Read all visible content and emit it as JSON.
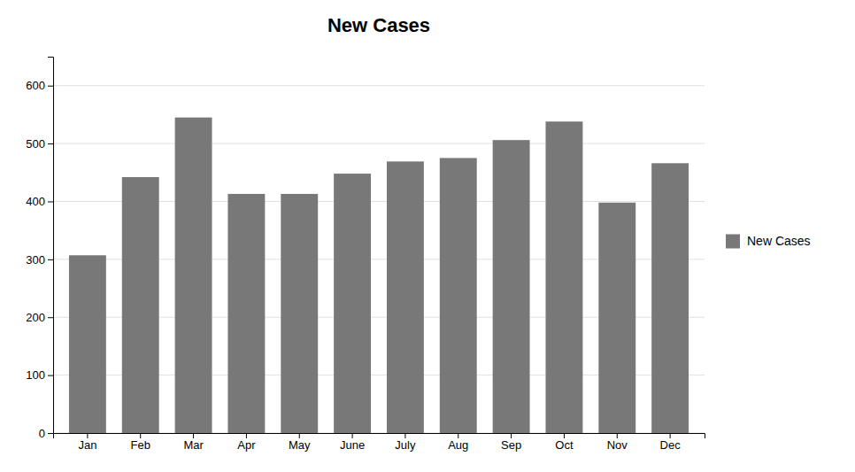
{
  "chart_data": {
    "type": "bar",
    "title": "New Cases",
    "categories": [
      "Jan",
      "Feb",
      "Mar",
      "Apr",
      "May",
      "June",
      "July",
      "Aug",
      "Sep",
      "Oct",
      "Nov",
      "Dec"
    ],
    "series": [
      {
        "name": "New Cases",
        "color": "#787878",
        "values": [
          307,
          442,
          545,
          413,
          413,
          448,
          469,
          475,
          506,
          538,
          398,
          466
        ]
      }
    ],
    "ylim": [
      0,
      650
    ],
    "yticks": [
      0,
      100,
      200,
      300,
      400,
      500,
      600
    ],
    "grid": true,
    "legend": "right"
  }
}
